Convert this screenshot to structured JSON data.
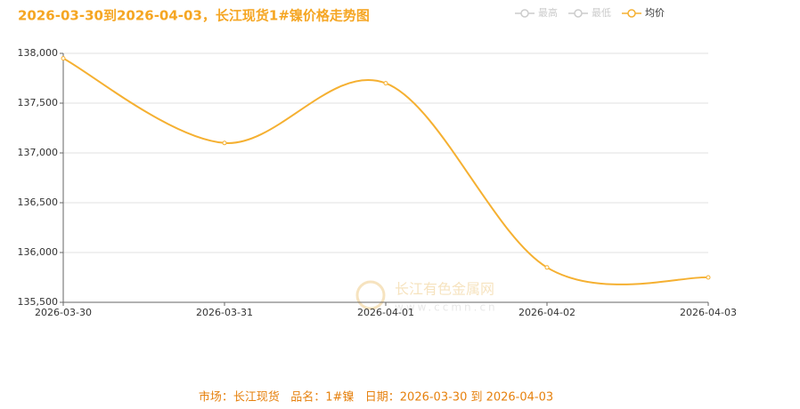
{
  "chart_data": {
    "type": "line",
    "title": "2026-03-30到2026-04-03，长江现货1#镍价格走势图",
    "categories": [
      "2026-03-30",
      "2026-03-31",
      "2026-04-01",
      "2026-04-02",
      "2026-04-03"
    ],
    "series": [
      {
        "name": "均价",
        "color": "#f5b031",
        "values": [
          137950,
          137100,
          137700,
          135850,
          135750
        ]
      }
    ],
    "legend": [
      {
        "name": "最高",
        "color": "#cccccc"
      },
      {
        "name": "最低",
        "color": "#cccccc"
      },
      {
        "name": "均价",
        "color": "#f5b031"
      }
    ],
    "ylim": [
      135500,
      138000
    ],
    "yticks": [
      {
        "value": 135500,
        "label": "135,500"
      },
      {
        "value": 136000,
        "label": "136,000"
      },
      {
        "value": 136500,
        "label": "136,500"
      },
      {
        "value": 137000,
        "label": "137,000"
      },
      {
        "value": 137500,
        "label": "137,500"
      },
      {
        "value": 138000,
        "label": "138,000"
      }
    ],
    "grid": true,
    "smooth": true,
    "watermark": {
      "name": "长江有色金属网",
      "url": "www.ccmn.cn"
    },
    "footer": "市场：长江现货   品名：1#镍   日期：2026-03-30 到 2026-04-03"
  }
}
